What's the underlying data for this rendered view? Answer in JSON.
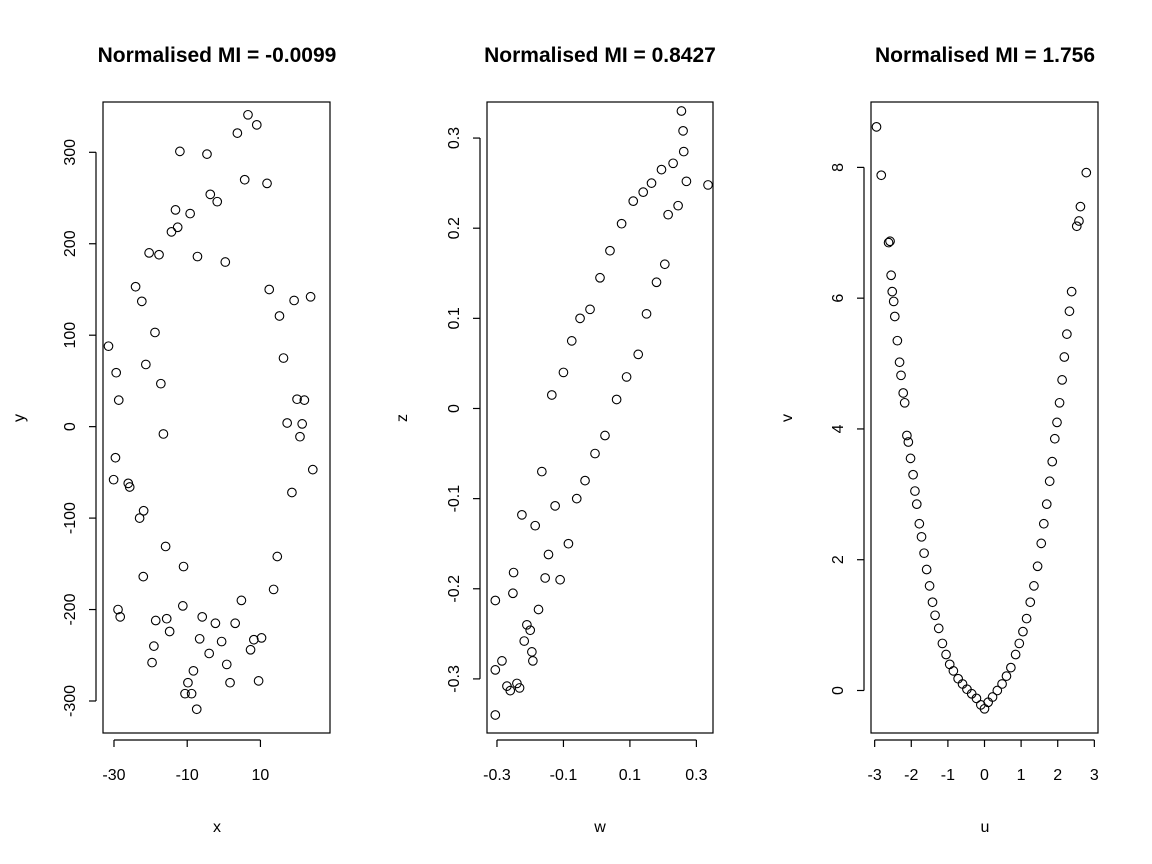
{
  "chart_data": [
    {
      "type": "scatter",
      "title": "Normalised MI = -0.0099",
      "xlabel": "x",
      "ylabel": "y",
      "xlim": [
        -33,
        29
      ],
      "ylim": [
        -335,
        355
      ],
      "xticks": [
        -30,
        -10,
        10
      ],
      "yticks": [
        -300,
        -200,
        -100,
        0,
        100,
        200,
        300
      ],
      "grid": false,
      "points": [
        [
          -31.5,
          88
        ],
        [
          -29.4,
          59
        ],
        [
          -28.7,
          29
        ],
        [
          -29.6,
          -34
        ],
        [
          -30.1,
          -58
        ],
        [
          -28.9,
          -200
        ],
        [
          -28.3,
          -208
        ],
        [
          -26.1,
          -62
        ],
        [
          -25.7,
          -66
        ],
        [
          -24.1,
          153
        ],
        [
          -22.4,
          137
        ],
        [
          -21.3,
          68
        ],
        [
          -21.9,
          -92
        ],
        [
          -23.0,
          -100
        ],
        [
          -22.0,
          -164
        ],
        [
          -20.4,
          190
        ],
        [
          -19.6,
          -258
        ],
        [
          -19.1,
          -240
        ],
        [
          -18.8,
          103
        ],
        [
          -18.6,
          -212
        ],
        [
          -17.7,
          188
        ],
        [
          -17.2,
          47
        ],
        [
          -16.5,
          -8
        ],
        [
          -15.9,
          -131
        ],
        [
          -15.6,
          -210
        ],
        [
          -14.8,
          -224
        ],
        [
          -14.3,
          213
        ],
        [
          -13.2,
          237
        ],
        [
          -12.6,
          218
        ],
        [
          -12.0,
          301
        ],
        [
          -11.2,
          -196
        ],
        [
          -11.0,
          -153
        ],
        [
          -10.6,
          -292
        ],
        [
          -9.8,
          -280
        ],
        [
          -9.2,
          233
        ],
        [
          -8.8,
          -292
        ],
        [
          -8.3,
          -267
        ],
        [
          -7.4,
          -309
        ],
        [
          -7.2,
          186
        ],
        [
          -6.6,
          -232
        ],
        [
          -5.9,
          -208
        ],
        [
          -4.6,
          298
        ],
        [
          -4.0,
          -248
        ],
        [
          -3.7,
          254
        ],
        [
          -2.3,
          -215
        ],
        [
          -1.8,
          246
        ],
        [
          -0.6,
          -235
        ],
        [
          0.4,
          180
        ],
        [
          0.8,
          -260
        ],
        [
          1.7,
          -280
        ],
        [
          3.1,
          -215
        ],
        [
          3.7,
          321
        ],
        [
          4.8,
          -190
        ],
        [
          5.7,
          270
        ],
        [
          6.6,
          341
        ],
        [
          7.3,
          -244
        ],
        [
          8.2,
          -233
        ],
        [
          9.5,
          -278
        ],
        [
          9.0,
          330
        ],
        [
          10.3,
          -231
        ],
        [
          11.8,
          266
        ],
        [
          12.4,
          150
        ],
        [
          13.6,
          -178
        ],
        [
          14.6,
          -142
        ],
        [
          15.2,
          121
        ],
        [
          16.3,
          75
        ],
        [
          17.3,
          4
        ],
        [
          18.6,
          -72
        ],
        [
          19.2,
          138
        ],
        [
          20.0,
          30
        ],
        [
          20.8,
          -11
        ],
        [
          21.4,
          3
        ],
        [
          22.0,
          29
        ],
        [
          23.7,
          142
        ],
        [
          24.3,
          -47
        ]
      ]
    },
    {
      "type": "scatter",
      "title": "Normalised MI = 0.8427",
      "xlabel": "w",
      "ylabel": "z",
      "xlim": [
        -0.33,
        0.35
      ],
      "ylim": [
        -0.36,
        0.34
      ],
      "xticks": [
        -0.3,
        -0.1,
        0.1,
        0.3
      ],
      "yticks": [
        -0.3,
        -0.2,
        -0.1,
        0.0,
        0.1,
        0.2,
        0.3
      ],
      "grid": false,
      "points": [
        [
          -0.305,
          -0.34
        ],
        [
          -0.305,
          -0.29
        ],
        [
          -0.305,
          -0.213
        ],
        [
          -0.285,
          -0.28
        ],
        [
          -0.27,
          -0.308
        ],
        [
          -0.26,
          -0.313
        ],
        [
          -0.252,
          -0.205
        ],
        [
          -0.25,
          -0.182
        ],
        [
          -0.24,
          -0.305
        ],
        [
          -0.232,
          -0.31
        ],
        [
          -0.225,
          -0.118
        ],
        [
          -0.218,
          -0.258
        ],
        [
          -0.21,
          -0.24
        ],
        [
          -0.2,
          -0.246
        ],
        [
          -0.195,
          -0.27
        ],
        [
          -0.192,
          -0.28
        ],
        [
          -0.185,
          -0.13
        ],
        [
          -0.175,
          -0.223
        ],
        [
          -0.165,
          -0.07
        ],
        [
          -0.155,
          -0.188
        ],
        [
          -0.145,
          -0.162
        ],
        [
          -0.135,
          0.015
        ],
        [
          -0.125,
          -0.108
        ],
        [
          -0.11,
          -0.19
        ],
        [
          -0.1,
          0.04
        ],
        [
          -0.085,
          -0.15
        ],
        [
          -0.075,
          0.075
        ],
        [
          -0.06,
          -0.1
        ],
        [
          -0.05,
          0.1
        ],
        [
          -0.035,
          -0.08
        ],
        [
          -0.02,
          0.11
        ],
        [
          -0.005,
          -0.05
        ],
        [
          0.01,
          0.145
        ],
        [
          0.025,
          -0.03
        ],
        [
          0.04,
          0.175
        ],
        [
          0.06,
          0.01
        ],
        [
          0.075,
          0.205
        ],
        [
          0.09,
          0.035
        ],
        [
          0.11,
          0.23
        ],
        [
          0.125,
          0.06
        ],
        [
          0.14,
          0.24
        ],
        [
          0.15,
          0.105
        ],
        [
          0.165,
          0.25
        ],
        [
          0.18,
          0.14
        ],
        [
          0.195,
          0.265
        ],
        [
          0.205,
          0.16
        ],
        [
          0.215,
          0.215
        ],
        [
          0.23,
          0.272
        ],
        [
          0.245,
          0.225
        ],
        [
          0.255,
          0.33
        ],
        [
          0.26,
          0.308
        ],
        [
          0.262,
          0.285
        ],
        [
          0.27,
          0.252
        ],
        [
          0.335,
          0.248
        ]
      ]
    },
    {
      "type": "scatter",
      "title": "Normalised MI = 1.756",
      "xlabel": "u",
      "ylabel": "v",
      "xlim": [
        -3.1,
        3.1
      ],
      "ylim": [
        -0.65,
        9.0
      ],
      "xticks": [
        -3,
        -2,
        -1,
        0,
        1,
        2,
        3
      ],
      "yticks": [
        0,
        2,
        4,
        6,
        8
      ],
      "grid": false,
      "points": [
        [
          -2.95,
          8.62
        ],
        [
          -2.82,
          7.88
        ],
        [
          -2.62,
          6.85
        ],
        [
          -2.58,
          6.87
        ],
        [
          -2.55,
          6.35
        ],
        [
          -2.52,
          6.1
        ],
        [
          -2.48,
          5.95
        ],
        [
          -2.45,
          5.72
        ],
        [
          -2.38,
          5.35
        ],
        [
          -2.32,
          5.02
        ],
        [
          -2.28,
          4.82
        ],
        [
          -2.22,
          4.55
        ],
        [
          -2.18,
          4.4
        ],
        [
          -2.12,
          3.9
        ],
        [
          -2.08,
          3.8
        ],
        [
          -2.02,
          3.55
        ],
        [
          -1.95,
          3.3
        ],
        [
          -1.9,
          3.05
        ],
        [
          -1.85,
          2.85
        ],
        [
          -1.78,
          2.55
        ],
        [
          -1.72,
          2.35
        ],
        [
          -1.65,
          2.1
        ],
        [
          -1.58,
          1.85
        ],
        [
          -1.5,
          1.6
        ],
        [
          -1.42,
          1.35
        ],
        [
          -1.35,
          1.15
        ],
        [
          -1.25,
          0.95
        ],
        [
          -1.15,
          0.72
        ],
        [
          -1.05,
          0.55
        ],
        [
          -0.95,
          0.4
        ],
        [
          -0.85,
          0.3
        ],
        [
          -0.72,
          0.18
        ],
        [
          -0.6,
          0.1
        ],
        [
          -0.48,
          0.02
        ],
        [
          -0.35,
          -0.05
        ],
        [
          -0.22,
          -0.12
        ],
        [
          -0.1,
          -0.22
        ],
        [
          0.0,
          -0.28
        ],
        [
          0.1,
          -0.18
        ],
        [
          0.22,
          -0.1
        ],
        [
          0.35,
          0.0
        ],
        [
          0.48,
          0.1
        ],
        [
          0.6,
          0.22
        ],
        [
          0.72,
          0.35
        ],
        [
          0.85,
          0.55
        ],
        [
          0.95,
          0.72
        ],
        [
          1.05,
          0.9
        ],
        [
          1.15,
          1.1
        ],
        [
          1.25,
          1.35
        ],
        [
          1.35,
          1.6
        ],
        [
          1.45,
          1.9
        ],
        [
          1.55,
          2.25
        ],
        [
          1.62,
          2.55
        ],
        [
          1.7,
          2.85
        ],
        [
          1.78,
          3.2
        ],
        [
          1.85,
          3.5
        ],
        [
          1.92,
          3.85
        ],
        [
          1.98,
          4.1
        ],
        [
          2.05,
          4.4
        ],
        [
          2.12,
          4.75
        ],
        [
          2.18,
          5.1
        ],
        [
          2.25,
          5.45
        ],
        [
          2.32,
          5.8
        ],
        [
          2.38,
          6.1
        ],
        [
          2.52,
          7.1
        ],
        [
          2.58,
          7.18
        ],
        [
          2.62,
          7.4
        ],
        [
          2.78,
          7.92
        ]
      ]
    }
  ]
}
